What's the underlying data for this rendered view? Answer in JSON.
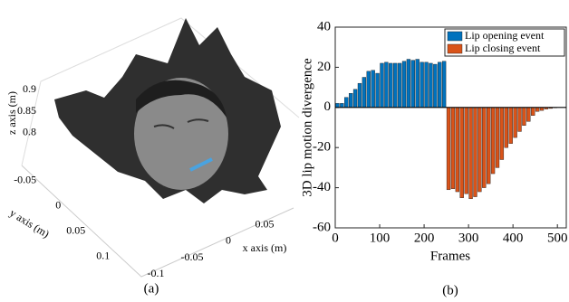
{
  "chart_data": [
    {
      "type": "surface3d",
      "xlabel": "x axis (m)",
      "ylabel": "y axis (m)",
      "zlabel": "z axis (m)",
      "xlim": [
        -0.13,
        0.08
      ],
      "xticks": [
        -0.1,
        -0.05,
        0,
        0.05
      ],
      "ylim": [
        -0.08,
        0.12
      ],
      "yticks": [
        -0.05,
        0,
        0.05,
        0.1
      ],
      "zlim": [
        0.78,
        0.92
      ],
      "zticks": [
        0.9,
        0.85,
        0.8
      ],
      "caption": "(a)"
    },
    {
      "type": "bar",
      "xlabel": "Frames",
      "ylabel": "3D lip motion divergence",
      "xlim": [
        0,
        520
      ],
      "xticks": [
        0,
        100,
        200,
        300,
        400,
        500
      ],
      "ylim": [
        -60,
        40
      ],
      "yticks": [
        -60,
        -40,
        -20,
        0,
        20,
        40
      ],
      "legend": "upper right",
      "series": [
        {
          "name": "Lip opening event",
          "color": "#0072bd",
          "x": [
            5,
            15,
            25,
            35,
            45,
            55,
            65,
            75,
            85,
            95,
            105,
            115,
            125,
            135,
            145,
            155,
            165,
            175,
            185,
            195,
            205,
            215,
            225,
            235,
            245
          ],
          "values": [
            2,
            2,
            5,
            7,
            9,
            12,
            15,
            18,
            18.5,
            17,
            22,
            22.5,
            22,
            22,
            22,
            23,
            24,
            23.5,
            24,
            22.5,
            22.5,
            22,
            21.5,
            22.5,
            23
          ]
        },
        {
          "name": "Lip closing event",
          "color": "#d95319",
          "x": [
            255,
            265,
            275,
            285,
            295,
            305,
            315,
            325,
            335,
            345,
            355,
            365,
            375,
            385,
            395,
            405,
            415,
            425,
            435,
            445,
            455,
            465,
            475,
            485,
            495
          ],
          "values": [
            -41,
            -40.5,
            -42,
            -45,
            -43,
            -45.5,
            -44.5,
            -42,
            -40,
            -38,
            -33,
            -30,
            -26,
            -20,
            -18,
            -15,
            -12,
            -9,
            -7,
            -4,
            -2,
            -1.5,
            -0.8,
            -0.5,
            -0.2
          ]
        }
      ],
      "caption": "(b)"
    }
  ]
}
